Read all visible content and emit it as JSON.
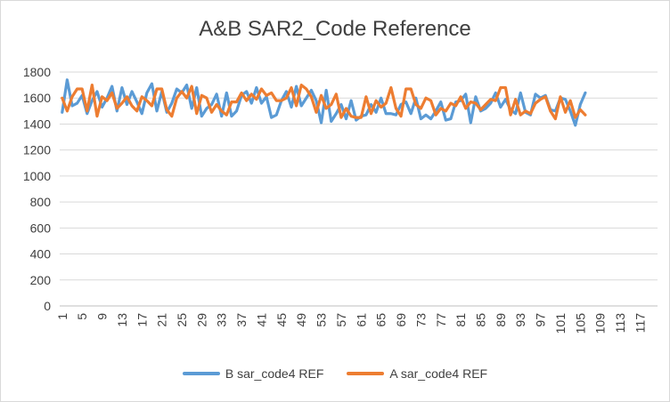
{
  "chart_data": {
    "type": "line",
    "title": "A&B SAR2_Code Reference",
    "xlabel": "",
    "ylabel": "",
    "ylim": [
      0,
      1800
    ],
    "yticks": [
      0,
      200,
      400,
      600,
      800,
      1000,
      1200,
      1400,
      1600,
      1800
    ],
    "xcount": 120,
    "xticks": [
      "1",
      "5",
      "9",
      "13",
      "17",
      "21",
      "25",
      "29",
      "33",
      "37",
      "41",
      "45",
      "49",
      "53",
      "57",
      "61",
      "65",
      "69",
      "73",
      "77",
      "81",
      "85",
      "89",
      "93",
      "97",
      "101",
      "105",
      "109",
      "113",
      "117"
    ],
    "grid": true,
    "legend_position": "bottom",
    "series": [
      {
        "name": "B sar_code4 REF",
        "color": "#5B9BD5",
        "values": [
          1490,
          1740,
          1540,
          1560,
          1620,
          1480,
          1580,
          1650,
          1530,
          1600,
          1690,
          1500,
          1680,
          1550,
          1650,
          1570,
          1480,
          1640,
          1710,
          1500,
          1650,
          1490,
          1560,
          1670,
          1640,
          1700,
          1520,
          1680,
          1460,
          1520,
          1550,
          1630,
          1460,
          1640,
          1460,
          1500,
          1620,
          1650,
          1560,
          1680,
          1560,
          1610,
          1450,
          1470,
          1580,
          1650,
          1530,
          1690,
          1540,
          1600,
          1660,
          1580,
          1410,
          1660,
          1420,
          1480,
          1550,
          1440,
          1580,
          1430,
          1460,
          1470,
          1550,
          1490,
          1600,
          1480,
          1480,
          1470,
          1550,
          1570,
          1480,
          1600,
          1440,
          1470,
          1440,
          1500,
          1570,
          1430,
          1440,
          1570,
          1580,
          1630,
          1410,
          1610,
          1500,
          1520,
          1560,
          1640,
          1530,
          1590,
          1510,
          1480,
          1640,
          1490,
          1470,
          1630,
          1600,
          1620,
          1510,
          1500,
          1600,
          1590,
          1500,
          1390,
          1550,
          1640
        ]
      },
      {
        "name": "A sar_code4 REF",
        "color": "#ED7D31",
        "values": [
          1600,
          1500,
          1610,
          1670,
          1670,
          1500,
          1700,
          1460,
          1610,
          1580,
          1640,
          1520,
          1560,
          1610,
          1540,
          1500,
          1610,
          1580,
          1540,
          1670,
          1670,
          1510,
          1460,
          1600,
          1650,
          1600,
          1690,
          1480,
          1620,
          1600,
          1490,
          1550,
          1500,
          1470,
          1570,
          1570,
          1640,
          1580,
          1630,
          1590,
          1670,
          1620,
          1640,
          1580,
          1580,
          1600,
          1680,
          1540,
          1700,
          1670,
          1610,
          1490,
          1620,
          1520,
          1550,
          1630,
          1450,
          1520,
          1460,
          1450,
          1450,
          1610,
          1480,
          1580,
          1530,
          1560,
          1680,
          1520,
          1460,
          1670,
          1670,
          1550,
          1520,
          1600,
          1580,
          1470,
          1520,
          1500,
          1560,
          1540,
          1610,
          1520,
          1570,
          1560,
          1510,
          1550,
          1590,
          1580,
          1680,
          1680,
          1470,
          1590,
          1470,
          1500,
          1480,
          1560,
          1590,
          1610,
          1500,
          1440,
          1610,
          1490,
          1580,
          1450,
          1510,
          1470
        ]
      }
    ]
  }
}
